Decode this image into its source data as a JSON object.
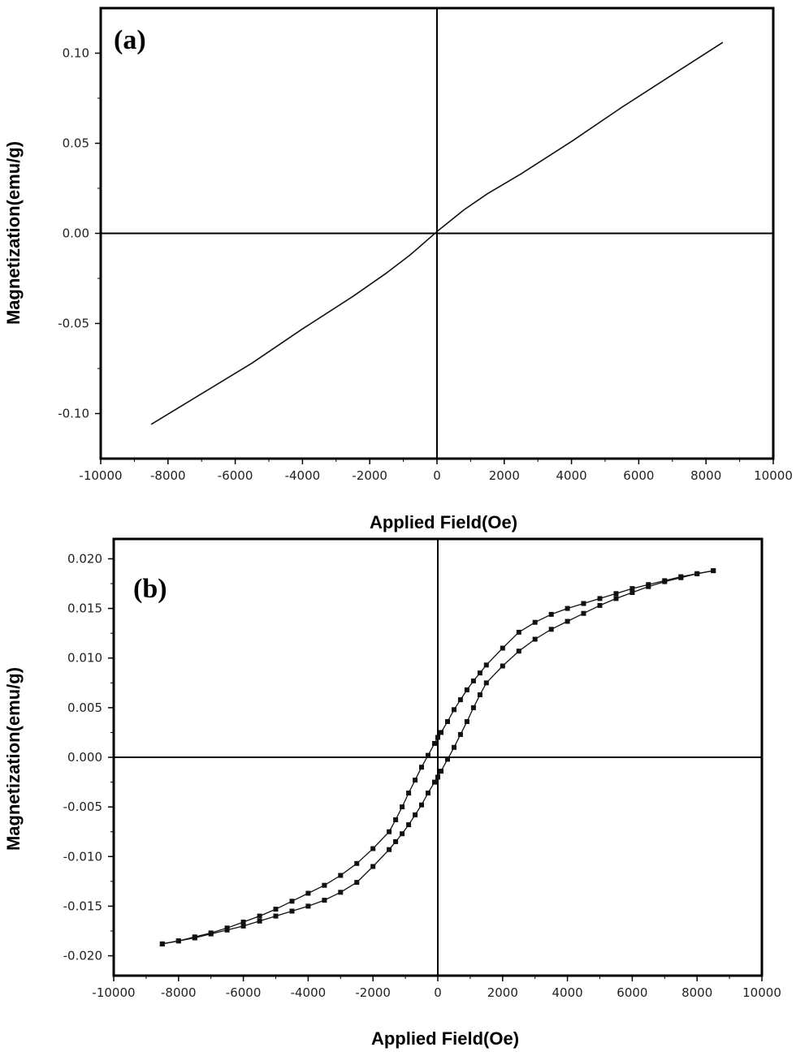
{
  "chart_data": [
    {
      "type": "line",
      "panel_label": "(a)",
      "xlabel": "Applied Field(Oe)",
      "ylabel": "Magnetization(emu/g)",
      "xlim": [
        -10000,
        10000
      ],
      "ylim": [
        -0.125,
        0.125
      ],
      "x_ticks": [
        -10000,
        -8000,
        -6000,
        -4000,
        -2000,
        0,
        2000,
        4000,
        6000,
        8000,
        10000
      ],
      "x_tick_labels": [
        "-10000",
        "-8000",
        "-6000",
        "-4000",
        "-2000",
        "0",
        "2000",
        "4000",
        "6000",
        "8000",
        "10000"
      ],
      "y_ticks": [
        -0.1,
        -0.05,
        0.0,
        0.05,
        0.1
      ],
      "y_tick_labels": [
        "-0.10",
        "-0.05",
        "0.00",
        "0.05",
        "0.10"
      ],
      "origin_lines": true,
      "series": [
        {
          "markers": false,
          "x": [
            -8500,
            -7000,
            -5500,
            -4000,
            -2500,
            -1500,
            -800,
            0,
            800,
            1500,
            2500,
            4000,
            5500,
            7000,
            8500
          ],
          "y": [
            -0.106,
            -0.089,
            -0.072,
            -0.053,
            -0.035,
            -0.022,
            -0.012,
            0.001,
            0.013,
            0.022,
            0.033,
            0.051,
            0.07,
            0.088,
            0.106
          ]
        }
      ]
    },
    {
      "type": "line",
      "panel_label": "(b)",
      "xlabel": "Applied Field(Oe)",
      "ylabel": "Magnetization(emu/g)",
      "xlim": [
        -10000,
        10000
      ],
      "ylim": [
        -0.022,
        0.022
      ],
      "x_ticks": [
        -10000,
        -8000,
        -6000,
        -4000,
        -2000,
        0,
        2000,
        4000,
        6000,
        8000,
        10000
      ],
      "x_tick_labels": [
        "-10000",
        "-8000",
        "-6000",
        "-4000",
        "-2000",
        "0",
        "2000",
        "4000",
        "6000",
        "8000",
        "10000"
      ],
      "y_ticks": [
        -0.02,
        -0.015,
        -0.01,
        -0.005,
        0.0,
        0.005,
        0.01,
        0.015,
        0.02
      ],
      "y_tick_labels": [
        "-0.020",
        "-0.015",
        "-0.010",
        "-0.005",
        "0.000",
        "0.005",
        "0.010",
        "0.015",
        "0.020"
      ],
      "origin_lines": true,
      "series": [
        {
          "markers": true,
          "x": [
            8500,
            8000,
            7500,
            7000,
            6500,
            6000,
            5500,
            5000,
            4500,
            4000,
            3500,
            3000,
            2500,
            2000,
            1500,
            1300,
            1100,
            900,
            700,
            500,
            300,
            100,
            0,
            -100,
            -300,
            -500,
            -700,
            -900,
            -1100,
            -1300,
            -1500,
            -2000,
            -2500,
            -3000,
            -3500,
            -4000,
            -4500,
            -5000,
            -5500,
            -6000,
            -6500,
            -7000,
            -7500,
            -8000,
            -8500
          ],
          "y": [
            0.0188,
            0.0185,
            0.0182,
            0.0178,
            0.0174,
            0.017,
            0.0165,
            0.016,
            0.0155,
            0.015,
            0.0144,
            0.0136,
            0.0126,
            0.011,
            0.0093,
            0.0085,
            0.0077,
            0.0068,
            0.0058,
            0.0048,
            0.0036,
            0.0025,
            0.002,
            0.0014,
            0.0002,
            -0.001,
            -0.0023,
            -0.0036,
            -0.005,
            -0.0063,
            -0.0075,
            -0.0092,
            -0.0107,
            -0.0119,
            -0.0129,
            -0.0137,
            -0.0145,
            -0.0153,
            -0.016,
            -0.0166,
            -0.0172,
            -0.0177,
            -0.0181,
            -0.0185,
            -0.0188
          ]
        },
        {
          "markers": true,
          "x": [
            -8500,
            -8000,
            -7500,
            -7000,
            -6500,
            -6000,
            -5500,
            -5000,
            -4500,
            -4000,
            -3500,
            -3000,
            -2500,
            -2000,
            -1500,
            -1300,
            -1100,
            -900,
            -700,
            -500,
            -300,
            -100,
            0,
            100,
            300,
            500,
            700,
            900,
            1100,
            1300,
            1500,
            2000,
            2500,
            3000,
            3500,
            4000,
            4500,
            5000,
            5500,
            6000,
            6500,
            7000,
            7500,
            8000,
            8500
          ],
          "y": [
            -0.0188,
            -0.0185,
            -0.0182,
            -0.0178,
            -0.0174,
            -0.017,
            -0.0165,
            -0.016,
            -0.0155,
            -0.015,
            -0.0144,
            -0.0136,
            -0.0126,
            -0.011,
            -0.0093,
            -0.0085,
            -0.0077,
            -0.0068,
            -0.0058,
            -0.0048,
            -0.0036,
            -0.0025,
            -0.002,
            -0.0014,
            -0.0002,
            0.001,
            0.0023,
            0.0036,
            0.005,
            0.0063,
            0.0075,
            0.0092,
            0.0107,
            0.0119,
            0.0129,
            0.0137,
            0.0145,
            0.0153,
            0.016,
            0.0166,
            0.0172,
            0.0177,
            0.0181,
            0.0185,
            0.0188
          ]
        }
      ]
    }
  ]
}
